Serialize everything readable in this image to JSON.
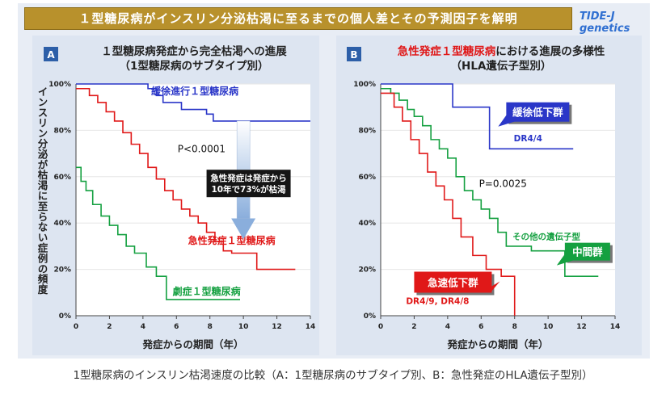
{
  "header": {
    "title": "１型糖尿病がインスリン分泌枯渇に至るまでの個人差とその予測因子を解明",
    "brand": "TIDE-J genetics"
  },
  "caption": "1型糖尿病のインスリン枯渇速度の比較（A：1型糖尿病のサブタイプ別、B：急性発症のHLA遺伝子型別）",
  "chart_data": [
    {
      "type": "line",
      "panel": "A",
      "title": "１型糖尿病発症から完全枯渇への進展",
      "subtitle": "（1型糖尿病のサブタイプ別）",
      "xlabel": "発症からの期間（年）",
      "ylabel": "インスリン分泌が枯渇に至らない症例の頻度",
      "xlim": [
        0,
        14
      ],
      "ylim": [
        0,
        100
      ],
      "xticks": [
        "0",
        "2",
        "4",
        "6",
        "8",
        "10",
        "12",
        "14"
      ],
      "yticks": [
        "0%",
        "20%",
        "40%",
        "60%",
        "80%",
        "100%"
      ],
      "pvalue": "P<0.0001",
      "annotation": [
        "急性発症は発症から",
        "10年で73%が枯渇"
      ],
      "series": [
        {
          "name": "緩徐進行１型糖尿病",
          "color": "#2a36c8",
          "x": [
            0,
            3.7,
            4.3,
            4.8,
            5.2,
            6.3,
            7.8,
            8.2,
            14
          ],
          "y": [
            100,
            100,
            98,
            95,
            92,
            89,
            87,
            84,
            84
          ]
        },
        {
          "name": "急性発症１型糖尿病",
          "color": "#e01818",
          "x": [
            0,
            0.8,
            1.3,
            1.8,
            2.3,
            2.8,
            3.3,
            3.8,
            4.3,
            4.8,
            5.3,
            5.8,
            6.3,
            6.8,
            7.3,
            7.8,
            8.3,
            8.8,
            9.3,
            10.8,
            13.1
          ],
          "y": [
            98,
            95,
            92,
            88,
            84,
            79,
            74,
            70,
            64,
            59,
            54,
            50,
            46,
            43,
            40,
            36,
            32,
            28,
            27,
            20,
            20
          ]
        },
        {
          "name": "劇症１型糖尿病",
          "color": "#14a040",
          "x": [
            0,
            0.3,
            0.6,
            1.0,
            1.5,
            2.0,
            2.5,
            3.0,
            3.5,
            4.2,
            4.8,
            5.4,
            9.8
          ],
          "y": [
            64,
            58,
            54,
            48,
            43,
            39,
            35,
            30,
            27,
            21,
            17,
            7,
            7
          ]
        }
      ]
    },
    {
      "type": "line",
      "panel": "B",
      "title": "急性発症１型糖尿病における進展の多様性",
      "title_highlight": "急性発症１型糖尿病",
      "subtitle": "（HLA遺伝子型別）",
      "xlabel": "発症からの期間（年）",
      "xlim": [
        0,
        14
      ],
      "ylim": [
        0,
        100
      ],
      "xticks": [
        "0",
        "2",
        "4",
        "6",
        "8",
        "10",
        "12",
        "14"
      ],
      "yticks": [
        "0%",
        "20%",
        "40%",
        "60%",
        "80%",
        "100%"
      ],
      "pvalue": "P=0.0025",
      "series": [
        {
          "name": "緩徐低下群",
          "sublabel": "DR4/4",
          "color": "#2a36c8",
          "x": [
            0,
            4.3,
            4.3,
            6.5,
            6.5,
            11.5
          ],
          "y": [
            100,
            100,
            90,
            90,
            72,
            72
          ]
        },
        {
          "name": "中間群",
          "sublabel": "その他の遺伝子型",
          "color": "#14a040",
          "x": [
            0,
            0.6,
            1.1,
            1.6,
            2.0,
            2.5,
            3.0,
            3.5,
            4.0,
            4.5,
            5.0,
            5.5,
            6.0,
            6.5,
            7.0,
            7.5,
            9.0,
            11.0,
            13.0
          ],
          "y": [
            98,
            96,
            93,
            89,
            86,
            82,
            76,
            72,
            68,
            60,
            54,
            50,
            46,
            42,
            36,
            30,
            28,
            17,
            17
          ]
        },
        {
          "name": "急速低下群",
          "sublabel": "DR4/9, DR4/8",
          "color": "#e01818",
          "x": [
            0,
            0.8,
            1.3,
            1.8,
            2.3,
            2.8,
            3.3,
            3.8,
            4.3,
            4.8,
            5.5,
            6.3,
            7.2,
            8.0,
            8.0
          ],
          "y": [
            96,
            90,
            84,
            76,
            70,
            62,
            56,
            50,
            42,
            34,
            26,
            20,
            17,
            17,
            0
          ]
        }
      ]
    }
  ]
}
